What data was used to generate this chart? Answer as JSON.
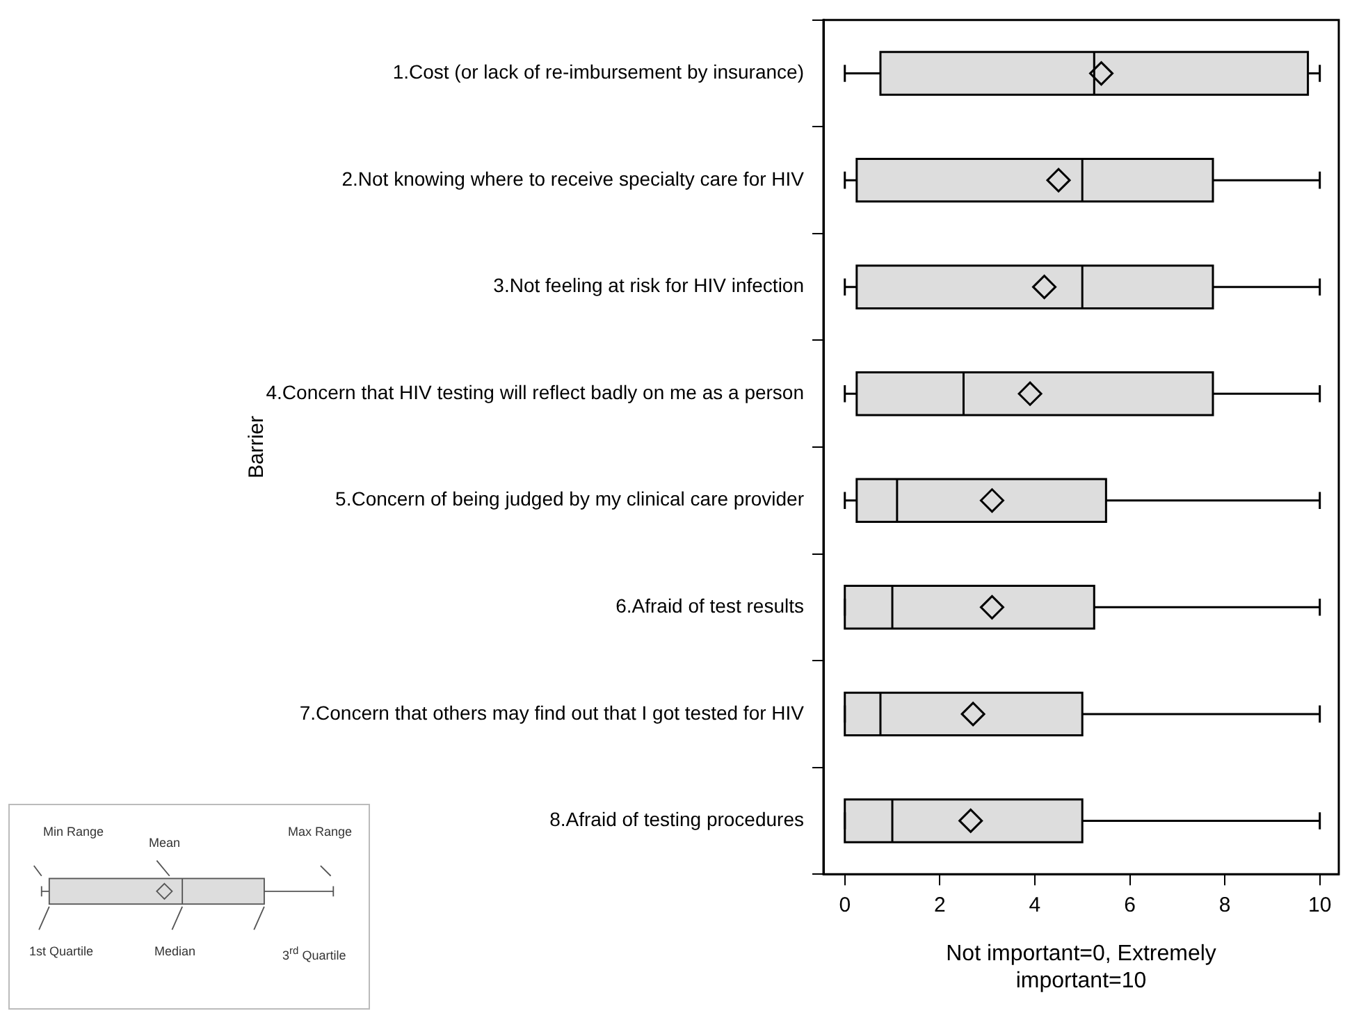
{
  "chart_data": {
    "type": "box",
    "orientation": "horizontal",
    "ylabel": "Barrier",
    "xlabel": "Not important=0, Extremely important=10",
    "categories": [
      "1.Cost (or lack of re-imbursement by insurance)",
      "2.Not knowing where to receive specialty care for HIV",
      "3.Not feeling at risk for HIV infection",
      "4.Concern that HIV testing will reflect badly on me as a person",
      "5.Concern of being judged by my clinical care provider",
      "6.Afraid of test results",
      "7.Concern that others may find out that I got tested for HIV",
      "8.Afraid of testing procedures"
    ],
    "boxes": [
      {
        "low": 0,
        "q1": 0.75,
        "median": 5.25,
        "q3": 9.75,
        "high": 10,
        "mean": 5.4
      },
      {
        "low": 0,
        "q1": 0.25,
        "median": 5,
        "q3": 7.75,
        "high": 10,
        "mean": 4.5
      },
      {
        "low": 0,
        "q1": 0.25,
        "median": 5,
        "q3": 7.75,
        "high": 10,
        "mean": 4.2
      },
      {
        "low": 0,
        "q1": 0.25,
        "median": 2.5,
        "q3": 7.75,
        "high": 10,
        "mean": 3.9
      },
      {
        "low": 0,
        "q1": 0.25,
        "median": 1.1,
        "q3": 5.5,
        "high": 10,
        "mean": 3.1
      },
      {
        "low": 0,
        "q1": 0,
        "median": 1,
        "q3": 5.25,
        "high": 10,
        "mean": 3.1
      },
      {
        "low": 0,
        "q1": 0,
        "median": 0.75,
        "q3": 5,
        "high": 10,
        "mean": 2.7
      },
      {
        "low": 0,
        "q1": 0,
        "median": 1,
        "q3": 5,
        "high": 10,
        "mean": 2.65
      }
    ],
    "color": "#dddddd",
    "marker": "diamond",
    "grid": false,
    "xlim": [
      -0.45,
      10.4
    ],
    "xticks": [
      0,
      2,
      4,
      6,
      8,
      10
    ],
    "annotations": [
      "Min Range",
      "Mean",
      "Max Range",
      "1st Quartile",
      "Median",
      "3$^{rd}$ Quartile"
    ]
  }
}
